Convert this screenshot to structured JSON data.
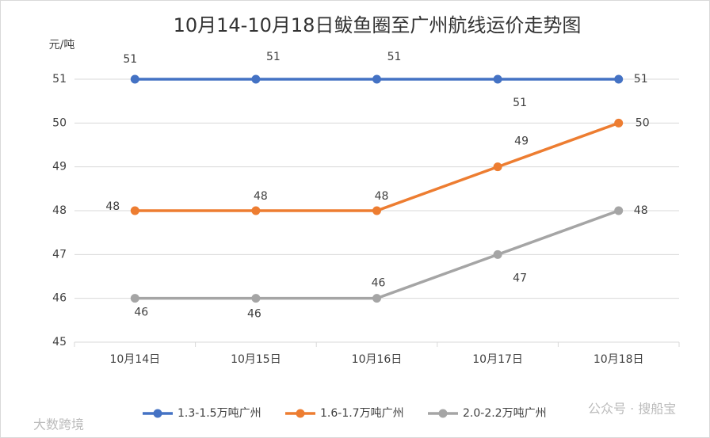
{
  "chart_data": {
    "type": "line",
    "title": "10月14-10月18日鲅鱼圈至广州航线运价走势图",
    "y_label": "元/吨",
    "categories": [
      "10月14日",
      "10月15日",
      "10月16日",
      "10月17日",
      "10月18日"
    ],
    "series": [
      {
        "name": "1.3-1.5万吨广州",
        "color": "#4472c4",
        "values": [
          51,
          51,
          51,
          51,
          51
        ]
      },
      {
        "name": "1.6-1.7万吨广州",
        "color": "#ed7d31",
        "values": [
          48,
          48,
          48,
          49,
          50
        ]
      },
      {
        "name": "2.0-2.2万吨广州",
        "color": "#a5a5a5",
        "values": [
          46,
          46,
          46,
          47,
          48
        ]
      }
    ],
    "ylim": [
      45,
      51
    ],
    "yticks": [
      45,
      46,
      47,
      48,
      49,
      50,
      51
    ],
    "grid": true,
    "legend": "bottom",
    "watermarks": [
      "大数跨境",
      "公众号 · 搜船宝"
    ]
  }
}
